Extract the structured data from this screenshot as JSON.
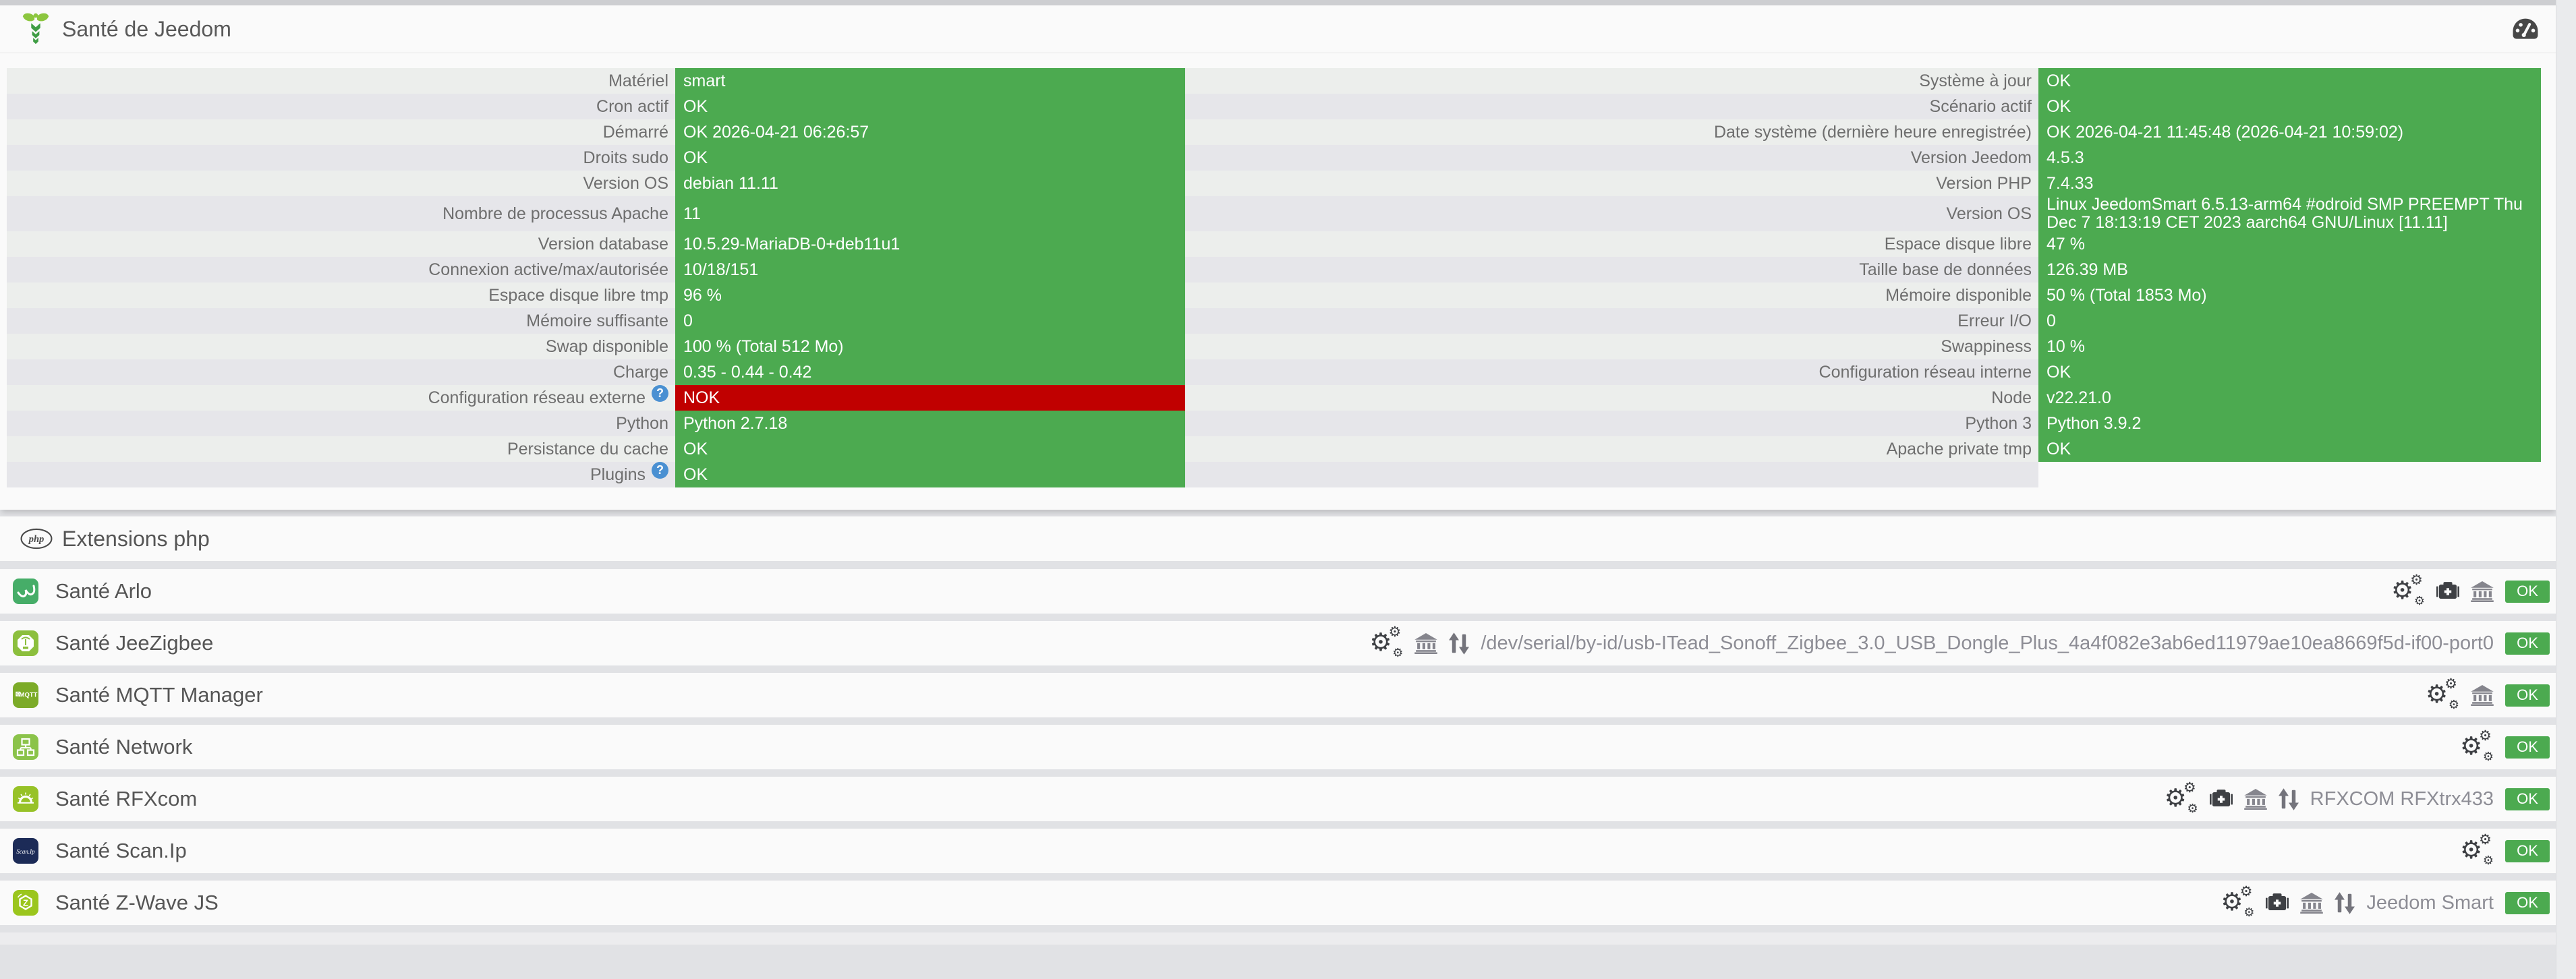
{
  "header": {
    "title": "Santé de Jeedom",
    "logo_icon": "jeedom-logo-icon",
    "gauge_icon": "tachometer-icon"
  },
  "health": {
    "rows": [
      {
        "left_label": "Matériel",
        "left_value": "smart",
        "right_label": "Système à jour",
        "right_value": "OK"
      },
      {
        "left_label": "Cron actif",
        "left_value": "OK",
        "right_label": "Scénario actif",
        "right_value": "OK"
      },
      {
        "left_label": "Démarré",
        "left_value": "OK 2026-04-21 06:26:57",
        "right_label": "Date système (dernière heure enregistrée)",
        "right_value": "OK 2026-04-21 11:45:48 (2026-04-21 10:59:02)"
      },
      {
        "left_label": "Droits sudo",
        "left_value": "OK",
        "right_label": "Version Jeedom",
        "right_value": "4.5.3"
      },
      {
        "left_label": "Version OS",
        "left_value": "debian 11.11",
        "right_label": "Version PHP",
        "right_value": "7.4.33"
      },
      {
        "left_label": "Nombre de processus Apache",
        "left_value": "11",
        "right_label": "Version OS",
        "right_value": "Linux JeedomSmart 6.5.13-arm64 #odroid SMP PREEMPT Thu Dec 7 18:13:19 CET 2023 aarch64 GNU/Linux [11.11]",
        "tall": true
      },
      {
        "left_label": "Version database",
        "left_value": "10.5.29-MariaDB-0+deb11u1",
        "right_label": "Espace disque libre",
        "right_value": "47 %"
      },
      {
        "left_label": "Connexion active/max/autorisée",
        "left_value": "10/18/151",
        "right_label": "Taille base de données",
        "right_value": "126.39 MB"
      },
      {
        "left_label": "Espace disque libre tmp",
        "left_value": "96 %",
        "right_label": "Mémoire disponible",
        "right_value": "50 % (Total 1853 Mo)"
      },
      {
        "left_label": "Mémoire suffisante",
        "left_value": "0",
        "right_label": "Erreur I/O",
        "right_value": "0"
      },
      {
        "left_label": "Swap disponible",
        "left_value": "100 % (Total 512 Mo)",
        "right_label": "Swappiness",
        "right_value": "10 %"
      },
      {
        "left_label": "Charge",
        "left_value": "0.35 - 0.44 - 0.42",
        "right_label": "Configuration réseau interne",
        "right_value": "OK"
      },
      {
        "left_label": "Configuration réseau externe",
        "left_help": "question-circle-icon",
        "left_value": "NOK",
        "left_status": "nok",
        "right_label": "Node",
        "right_value": "v22.21.0"
      },
      {
        "left_label": "Python",
        "left_value": "Python 2.7.18",
        "right_label": "Python 3",
        "right_value": "Python 3.9.2"
      },
      {
        "left_label": "Persistance du cache",
        "left_value": "OK",
        "right_label": "Apache private tmp",
        "right_value": "OK"
      },
      {
        "left_label": "Plugins",
        "left_help": "question-circle-icon",
        "left_value": "OK",
        "right_label": "",
        "right_empty": true
      }
    ]
  },
  "extensions": {
    "title": "Extensions php",
    "icon": "php-logo-icon"
  },
  "plugins": [
    {
      "name": "Santé Arlo",
      "tile": "arlo",
      "tile_color": "#46ad68",
      "icons": [
        "cogs-icon",
        "medkit-icon",
        "bank-icon"
      ],
      "info": "",
      "status": "OK"
    },
    {
      "name": "Santé JeeZigbee",
      "tile": "jeezigbee",
      "tile_color": "#8cbf3d",
      "icons": [
        "cogs-icon",
        "bank-icon",
        "exchange-icon"
      ],
      "info": "/dev/serial/by-id/usb-ITead_Sonoff_Zigbee_3.0_USB_Dongle_Plus_4a4f082e3ab6ed11979ae10ea8669f5d-if00-port0",
      "status": "OK"
    },
    {
      "name": "Santé MQTT Manager",
      "tile": "mqtt",
      "tile_color": "#7cab28",
      "icons": [
        "cogs-icon",
        "bank-icon"
      ],
      "info": "",
      "status": "OK"
    },
    {
      "name": "Santé Network",
      "tile": "network",
      "tile_color": "#8bc34a",
      "icons": [
        "cogs-icon"
      ],
      "info": "",
      "status": "OK"
    },
    {
      "name": "Santé RFXcom",
      "tile": "rfxcom",
      "tile_color": "#97c227",
      "icons": [
        "cogs-icon",
        "medkit-icon",
        "bank-icon",
        "exchange-icon"
      ],
      "info": "RFXCOM RFXtrx433",
      "status": "OK"
    },
    {
      "name": "Santé Scan.Ip",
      "tile": "scanip",
      "tile_color": "#1c2b57",
      "icons": [
        "cogs-icon"
      ],
      "info": "",
      "status": "OK"
    },
    {
      "name": "Santé Z-Wave JS",
      "tile": "zwavejs",
      "tile_color": "#9bc61d",
      "icons": [
        "cogs-icon",
        "medkit-icon",
        "bank-icon",
        "exchange-icon"
      ],
      "info": "Jeedom Smart",
      "status": "OK"
    }
  ],
  "colors": {
    "ok_green": "#4caa50",
    "nok_red": "#c00000",
    "page_bg": "#e1e2e5",
    "panel_bg": "#fafafa",
    "stripe_light": "#eceeec",
    "stripe_dark": "#e6e6ea",
    "help_blue": "#4a90d2"
  }
}
